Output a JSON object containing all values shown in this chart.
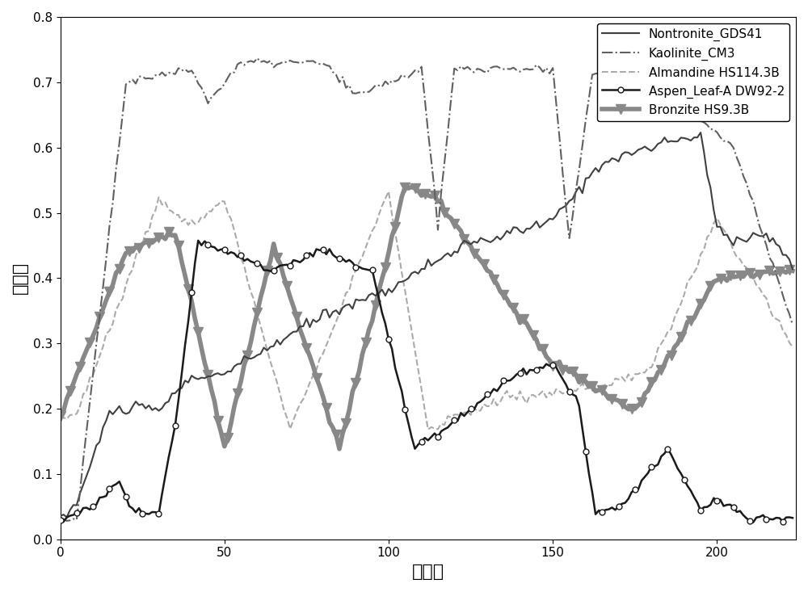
{
  "title": "",
  "xlabel": "波段数",
  "ylabel": "反射率",
  "xlim": [
    0,
    224
  ],
  "ylim": [
    0,
    0.8
  ],
  "xticks": [
    0,
    50,
    100,
    150,
    200
  ],
  "yticks": [
    0,
    0.1,
    0.2,
    0.3,
    0.4,
    0.5,
    0.6,
    0.7,
    0.8
  ],
  "legend_labels": [
    "Nontronite_GDS41",
    "Kaolinite_CM3",
    "Almandine HS114.3B",
    "Aspen_Leaf-A DW92-2",
    "Bronzite HS9.3B"
  ],
  "line_colors": [
    "#404040",
    "#606060",
    "#aaaaaa",
    "#1a1a1a",
    "#888888"
  ],
  "line_styles": [
    "-",
    "-.",
    "--",
    "-",
    "-"
  ],
  "line_widths": [
    1.5,
    1.5,
    1.5,
    1.8,
    4.0
  ],
  "markers": [
    "",
    "",
    "",
    "o",
    "v"
  ],
  "marker_sizes": [
    0,
    0,
    0,
    5,
    8
  ],
  "marker_every": [
    0,
    0,
    0,
    5,
    3
  ],
  "n_points": 224
}
